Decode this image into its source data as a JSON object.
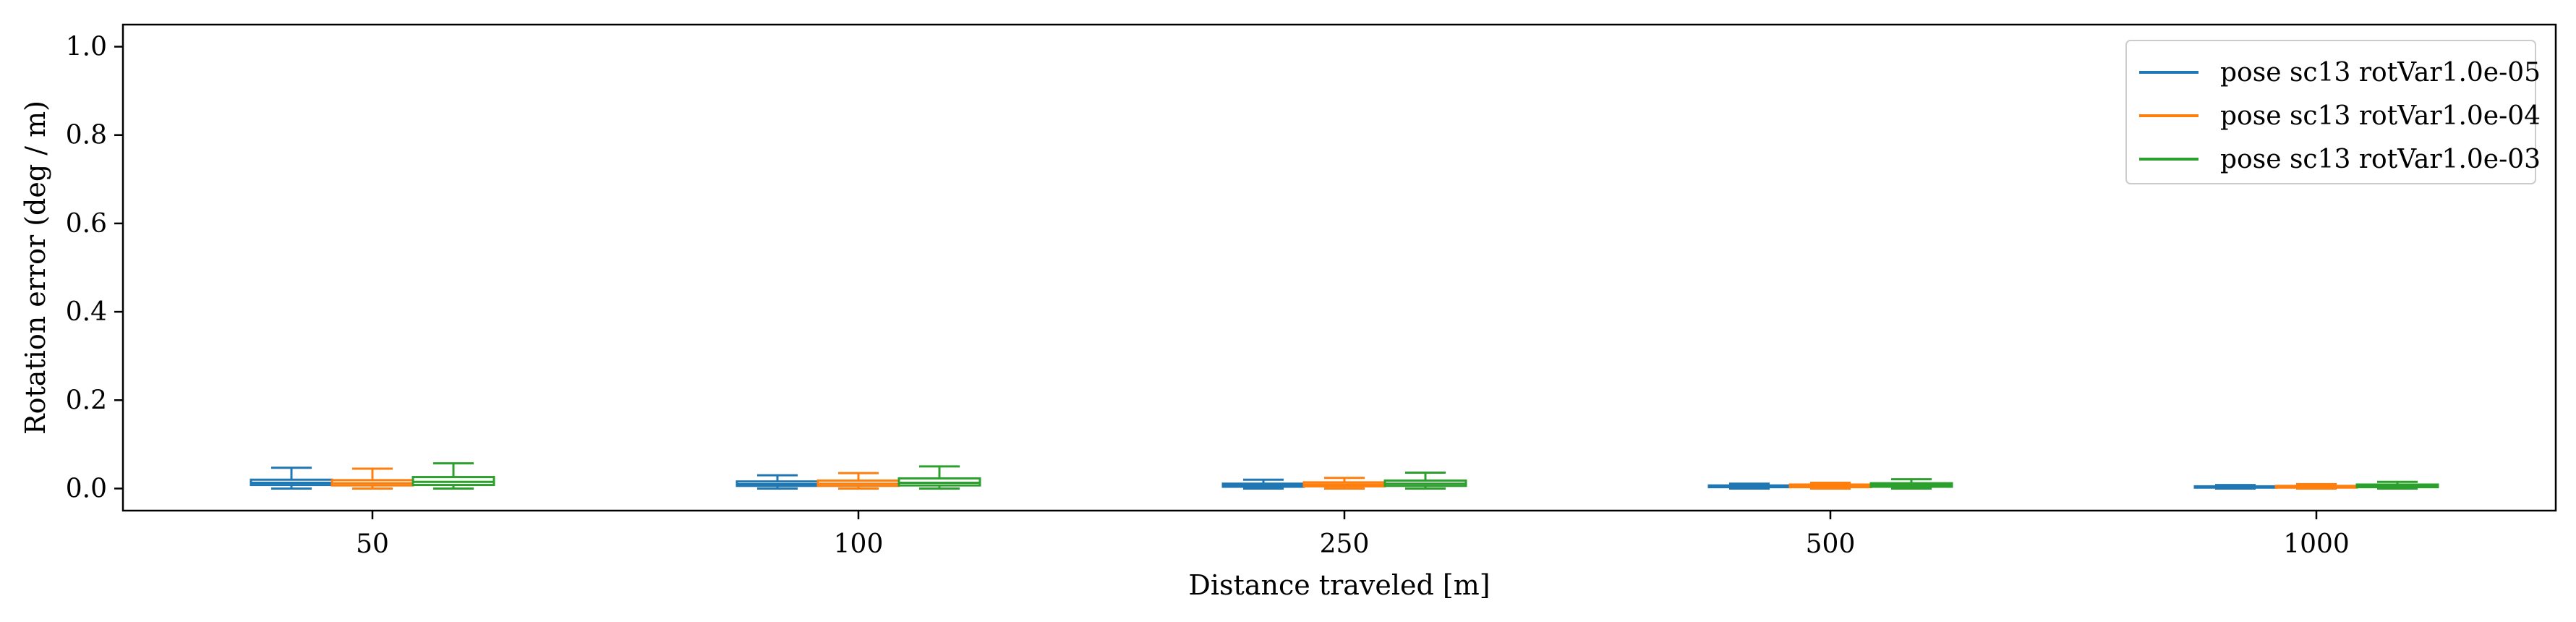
{
  "chart_data": {
    "type": "box",
    "xlabel": "Distance traveled [m]",
    "ylabel": "Rotation error (deg / m)",
    "categories": [
      "50",
      "100",
      "250",
      "500",
      "1000"
    ],
    "ylim": [
      -0.05,
      1.05
    ],
    "yticks": [
      0.0,
      0.2,
      0.4,
      0.6,
      0.8,
      1.0
    ],
    "ytick_labels": [
      "0.0",
      "0.2",
      "0.4",
      "0.6",
      "0.8",
      "1.0"
    ],
    "grid": false,
    "legend_position": "top-right",
    "series": [
      {
        "name": "pose sc13 rotVar1.0e-05",
        "color": "#1f77b4",
        "boxes": [
          {
            "whislo": 0.0,
            "q1": 0.008,
            "med": 0.013,
            "q3": 0.02,
            "whishi": 0.047
          },
          {
            "whislo": 0.0,
            "q1": 0.006,
            "med": 0.01,
            "q3": 0.016,
            "whishi": 0.03
          },
          {
            "whislo": 0.0,
            "q1": 0.004,
            "med": 0.007,
            "q3": 0.011,
            "whishi": 0.02
          },
          {
            "whislo": 0.0,
            "q1": 0.003,
            "med": 0.005,
            "q3": 0.007,
            "whishi": 0.011
          },
          {
            "whislo": 0.0,
            "q1": 0.002,
            "med": 0.003,
            "q3": 0.005,
            "whishi": 0.008
          }
        ]
      },
      {
        "name": "pose sc13 rotVar1.0e-04",
        "color": "#ff7f0e",
        "boxes": [
          {
            "whislo": 0.0,
            "q1": 0.007,
            "med": 0.012,
            "q3": 0.019,
            "whishi": 0.045
          },
          {
            "whislo": 0.0,
            "q1": 0.006,
            "med": 0.011,
            "q3": 0.018,
            "whishi": 0.035
          },
          {
            "whislo": 0.0,
            "q1": 0.005,
            "med": 0.009,
            "q3": 0.014,
            "whishi": 0.024
          },
          {
            "whislo": 0.0,
            "q1": 0.003,
            "med": 0.006,
            "q3": 0.009,
            "whishi": 0.013
          },
          {
            "whislo": 0.0,
            "q1": 0.002,
            "med": 0.004,
            "q3": 0.006,
            "whishi": 0.01
          }
        ]
      },
      {
        "name": "pose sc13 rotVar1.0e-03",
        "color": "#2ca02c",
        "boxes": [
          {
            "whislo": 0.0,
            "q1": 0.008,
            "med": 0.015,
            "q3": 0.026,
            "whishi": 0.057
          },
          {
            "whislo": 0.0,
            "q1": 0.007,
            "med": 0.013,
            "q3": 0.023,
            "whishi": 0.05
          },
          {
            "whislo": 0.0,
            "q1": 0.006,
            "med": 0.011,
            "q3": 0.018,
            "whishi": 0.036
          },
          {
            "whislo": 0.0,
            "q1": 0.004,
            "med": 0.008,
            "q3": 0.012,
            "whishi": 0.021
          },
          {
            "whislo": 0.0,
            "q1": 0.003,
            "med": 0.006,
            "q3": 0.009,
            "whishi": 0.015
          }
        ]
      }
    ]
  }
}
